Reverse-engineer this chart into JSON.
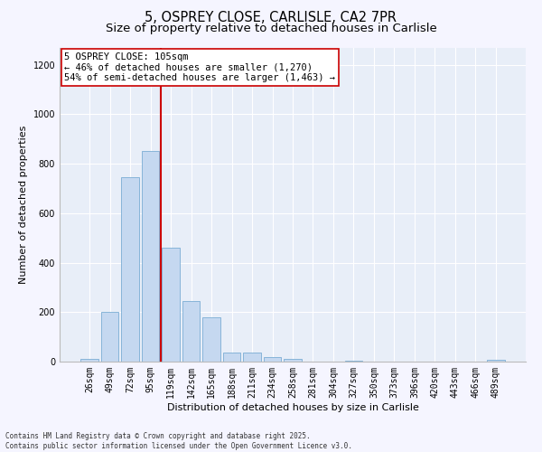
{
  "title": "5, OSPREY CLOSE, CARLISLE, CA2 7PR",
  "subtitle": "Size of property relative to detached houses in Carlisle",
  "xlabel": "Distribution of detached houses by size in Carlisle",
  "ylabel": "Number of detached properties",
  "categories": [
    "26sqm",
    "49sqm",
    "72sqm",
    "95sqm",
    "119sqm",
    "142sqm",
    "165sqm",
    "188sqm",
    "211sqm",
    "234sqm",
    "258sqm",
    "281sqm",
    "304sqm",
    "327sqm",
    "350sqm",
    "373sqm",
    "396sqm",
    "420sqm",
    "443sqm",
    "466sqm",
    "489sqm"
  ],
  "values": [
    10,
    200,
    745,
    850,
    460,
    245,
    180,
    35,
    35,
    18,
    10,
    0,
    0,
    2,
    0,
    0,
    0,
    0,
    0,
    0,
    8
  ],
  "bar_color": "#c5d8f0",
  "bar_edge_color": "#7aadd4",
  "vline_x_index": 3.5,
  "vline_color": "#cc0000",
  "annotation_text": "5 OSPREY CLOSE: 105sqm\n← 46% of detached houses are smaller (1,270)\n54% of semi-detached houses are larger (1,463) →",
  "annotation_box_color": "#ffffff",
  "annotation_box_edge_color": "#cc0000",
  "ylim_max": 1270,
  "yticks": [
    0,
    200,
    400,
    600,
    800,
    1000,
    1200
  ],
  "plot_bg_color": "#e8eef8",
  "fig_bg_color": "#f5f5ff",
  "footer": "Contains HM Land Registry data © Crown copyright and database right 2025.\nContains public sector information licensed under the Open Government Licence v3.0.",
  "title_fontsize": 10.5,
  "subtitle_fontsize": 9.5,
  "xlabel_fontsize": 8,
  "ylabel_fontsize": 8,
  "tick_fontsize": 7,
  "annotation_fontsize": 7.5,
  "footer_fontsize": 5.5
}
